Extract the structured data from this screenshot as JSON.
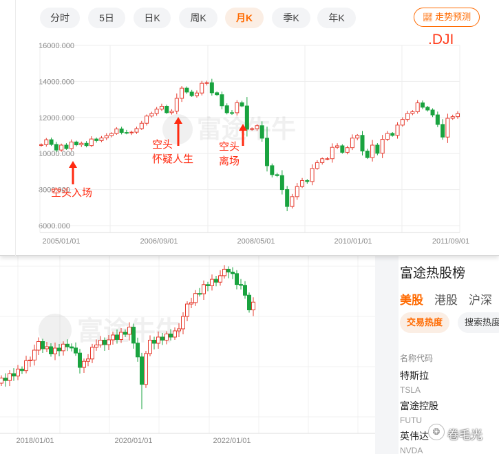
{
  "tabs": [
    {
      "label": "分时",
      "active": false
    },
    {
      "label": "5日",
      "active": false
    },
    {
      "label": "日K",
      "active": false
    },
    {
      "label": "周K",
      "active": false
    },
    {
      "label": "月K",
      "active": true
    },
    {
      "label": "季K",
      "active": false
    },
    {
      "label": "年K",
      "active": false
    }
  ],
  "trend_button": "走势预测",
  "ticker": ".DJI",
  "watermark": "富途牛牛",
  "annotations": {
    "a1": "空头入场",
    "a2_line1": "空头",
    "a2_line2": "怀疑人生",
    "a3_line1": "空头",
    "a3_line2": "离场"
  },
  "colors": {
    "up": "#e63b2e",
    "down": "#19a33f",
    "accent": "#ff6a00",
    "annotation": "#ff2a10"
  },
  "chart_data": [
    {
      "type": "candlestick",
      "ticker": ".DJI",
      "interval": "monthly",
      "yticks": [
        "16000.000",
        "14000.000",
        "12000.000",
        "10000.000",
        "8000.000",
        "6000.000"
      ],
      "ytick_values": [
        16000,
        14000,
        12000,
        10000,
        8000,
        6000
      ],
      "xticks": [
        "2005/01/01",
        "2006/09/01",
        "2008/05/01",
        "2010/01/01",
        "2011/09/01"
      ],
      "ylim": [
        6000,
        16000
      ],
      "grid": true,
      "closes": [
        10490,
        10766,
        10504,
        10193,
        10467,
        10275,
        10641,
        10482,
        10569,
        10440,
        10806,
        10718,
        10865,
        10993,
        11109,
        11367,
        11168,
        11150,
        11185,
        11381,
        11679,
        12081,
        12221,
        12463,
        12622,
        12268,
        12354,
        13063,
        13628,
        13409,
        13212,
        13358,
        13896,
        13930,
        13372,
        13265,
        12650,
        12266,
        12263,
        12820,
        12638,
        11350,
        11378,
        11544,
        10851,
        9325,
        8829,
        8776,
        8001,
        7063,
        7609,
        8168,
        8500,
        8447,
        9172,
        9496,
        9712,
        9713,
        10344,
        10428,
        10067,
        10325,
        10857,
        11009,
        10137,
        9774,
        10466,
        10015,
        10788,
        11118,
        11006,
        11578,
        11892,
        12226,
        12320,
        12811,
        12570,
        12414,
        12143,
        11614,
        10913,
        11955,
        12046,
        12218
      ],
      "annotations": [
        "空头入场",
        "空头 怀疑人生",
        "空头 离场"
      ]
    },
    {
      "type": "candlestick",
      "interval": "monthly",
      "xticks": [
        "2018/01/01",
        "2020/01/01",
        "2022/01/01"
      ],
      "grid": true
    }
  ],
  "hot_list": {
    "title": "富途热股榜",
    "markets": [
      {
        "label": "美股",
        "active": true
      },
      {
        "label": "港股",
        "active": false
      },
      {
        "label": "沪深",
        "active": false
      }
    ],
    "chips": [
      {
        "label": "交易热度",
        "active": true
      },
      {
        "label": "搜索热度",
        "active": false
      }
    ],
    "column_header": "名称代码",
    "stocks": [
      {
        "name": "特斯拉",
        "code": "TSLA"
      },
      {
        "name": "富途控股",
        "code": "FUTU"
      },
      {
        "name": "英伟达",
        "code": "NVDA"
      }
    ]
  },
  "credit": "卷毛光"
}
